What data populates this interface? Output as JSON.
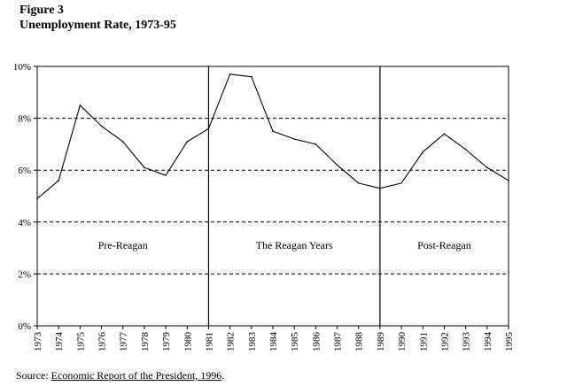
{
  "figure": {
    "label": "Figure 3",
    "title": "Unemployment Rate, 1973-95"
  },
  "source": {
    "prefix": "Source: ",
    "document": "Economic Report of the President, 1996",
    "suffix": "."
  },
  "chart_data": {
    "type": "line",
    "title": "Unemployment Rate, 1973-95",
    "xlabel": "",
    "ylabel": "",
    "ylim": [
      0,
      10
    ],
    "yticks": [
      0,
      2,
      4,
      6,
      8,
      10
    ],
    "ytick_labels": [
      "0%",
      "2%",
      "4%",
      "6%",
      "8%",
      "10%"
    ],
    "grid": "dashed horizontal at 2%, 4%, 6%, 8%",
    "x": [
      1973,
      1974,
      1975,
      1976,
      1977,
      1978,
      1979,
      1980,
      1981,
      1982,
      1983,
      1984,
      1985,
      1986,
      1987,
      1988,
      1989,
      1990,
      1991,
      1992,
      1993,
      1994,
      1995
    ],
    "x_labels": [
      "1973",
      "1974",
      "1975",
      "1976",
      "1977",
      "1978",
      "1979",
      "1980",
      "1981",
      "1982",
      "1983",
      "1984",
      "1985",
      "1986",
      "1987",
      "1988",
      "1989",
      "1990",
      "1991",
      "1992",
      "1993",
      "1994",
      "1995"
    ],
    "series": [
      {
        "name": "Unemployment Rate",
        "values": [
          4.9,
          5.6,
          8.5,
          7.7,
          7.1,
          6.1,
          5.8,
          7.1,
          7.6,
          9.7,
          9.6,
          7.5,
          7.2,
          7.0,
          6.2,
          5.5,
          5.3,
          5.5,
          6.7,
          7.4,
          6.8,
          6.1,
          5.6
        ]
      }
    ],
    "dividers": [
      1981,
      1989
    ],
    "period_labels": [
      {
        "text": "Pre-Reagan",
        "from": 1973,
        "to": 1981
      },
      {
        "text": "The Reagan Years",
        "from": 1981,
        "to": 1989
      },
      {
        "text": "Post-Reagan",
        "from": 1989,
        "to": 1995
      }
    ],
    "period_label_y": 3.1
  }
}
